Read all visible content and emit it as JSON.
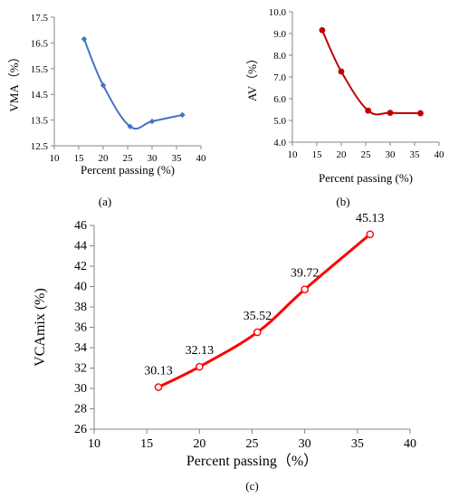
{
  "figure": {
    "colors": {
      "a": "#4472C4",
      "b": "#C00000",
      "c": "#FF0000"
    }
  },
  "chart_data": [
    {
      "id": "a",
      "type": "line",
      "panel_label": "(a)",
      "xlabel": "Percent passing (%)",
      "ylabel": "VMA（%）",
      "xlim": [
        10,
        40
      ],
      "ylim": [
        12.5,
        17.5
      ],
      "xticks": [
        "10",
        "15",
        "20",
        "25",
        "30",
        "35",
        "40"
      ],
      "yticks": [
        "12.5",
        "13.5",
        "14.5",
        "15.5",
        "16.5",
        "17.5"
      ],
      "marker": "diamond",
      "smooth": true,
      "grid": false,
      "series": [
        {
          "x": [
            16.1,
            20.0,
            25.5,
            30.0,
            36.2
          ],
          "y": [
            16.65,
            14.85,
            13.25,
            13.45,
            13.7
          ]
        }
      ]
    },
    {
      "id": "b",
      "type": "line",
      "panel_label": "(b)",
      "xlabel": "Percent passing (%)",
      "ylabel": "AV（%）",
      "xlim": [
        10,
        40
      ],
      "ylim": [
        4.0,
        10.0
      ],
      "xticks": [
        "10",
        "15",
        "20",
        "25",
        "30",
        "35",
        "40"
      ],
      "yticks": [
        "4.0",
        "5.0",
        "6.0",
        "7.0",
        "8.0",
        "9.0",
        "10.0"
      ],
      "marker": "circle",
      "smooth": true,
      "grid": false,
      "series": [
        {
          "x": [
            16.1,
            20.0,
            25.5,
            30.0,
            36.2
          ],
          "y": [
            9.15,
            7.25,
            5.45,
            5.35,
            5.33
          ]
        }
      ]
    },
    {
      "id": "c",
      "type": "line",
      "panel_label": "(c)",
      "xlabel": "Percent passing（%）",
      "ylabel": "VCAmix (%)",
      "xlim": [
        10,
        40
      ],
      "ylim": [
        26,
        46
      ],
      "xticks": [
        "10",
        "15",
        "20",
        "25",
        "30",
        "35",
        "40"
      ],
      "yticks": [
        "26",
        "28",
        "30",
        "32",
        "34",
        "36",
        "38",
        "40",
        "42",
        "44",
        "46"
      ],
      "marker": "open-circle",
      "smooth": true,
      "grid": false,
      "series": [
        {
          "x": [
            16.1,
            20.0,
            25.5,
            30.0,
            36.2
          ],
          "y": [
            30.13,
            32.13,
            35.52,
            39.72,
            45.13
          ],
          "labels": [
            "30.13",
            "32.13",
            "35.52",
            "39.72",
            "45.13"
          ]
        }
      ]
    }
  ]
}
